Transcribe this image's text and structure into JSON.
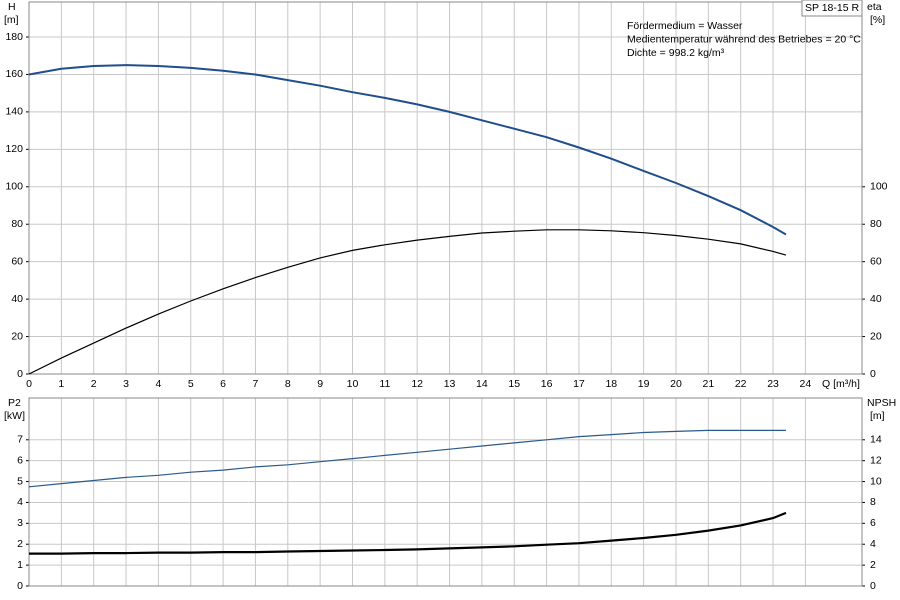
{
  "chart_data": [
    {
      "type": "line",
      "model": "SP 18-15 R",
      "annotations": [
        "Fördermedium = Wasser",
        "Medientemperatur während des Betriebes = 20 °C",
        "Dichte = 998.2 kg/m³"
      ],
      "ylabel": "H",
      "yunit": "[m]",
      "y2label": "eta",
      "y2unit": "[%]",
      "xlabel": "Q [m³/h]",
      "x": [
        0,
        1,
        2,
        3,
        4,
        5,
        6,
        7,
        8,
        9,
        10,
        11,
        12,
        13,
        14,
        15,
        16,
        17,
        18,
        19,
        20,
        21,
        22,
        23,
        23.4
      ],
      "xlim": [
        0,
        25.75
      ],
      "xticks": [
        0,
        1,
        2,
        3,
        4,
        5,
        6,
        7,
        8,
        9,
        10,
        11,
        12,
        13,
        14,
        15,
        16,
        17,
        18,
        19,
        20,
        21,
        22,
        23,
        24
      ],
      "ylim": [
        0,
        198.7
      ],
      "yticks": [
        0,
        20,
        40,
        60,
        80,
        100,
        120,
        140,
        160,
        180
      ],
      "y2lim": [
        0,
        198.7
      ],
      "y2ticks": [
        0,
        20,
        40,
        60,
        80,
        100
      ],
      "grid": true,
      "series": [
        {
          "name": "H",
          "color": "#1f4e8c",
          "values": [
            160,
            163,
            164.5,
            165,
            164.5,
            163.5,
            162,
            160,
            157,
            154,
            150.5,
            147.5,
            144,
            140,
            135.5,
            131,
            126.5,
            121,
            115,
            108.5,
            102,
            95,
            87.5,
            78.5,
            74.5
          ]
        },
        {
          "name": "eta",
          "color": "#000000",
          "axis": "y2",
          "values": [
            0,
            8.5,
            16.5,
            24.5,
            32,
            39,
            45.5,
            51.5,
            57,
            62,
            66,
            69,
            71.5,
            73.5,
            75.3,
            76.3,
            77,
            77,
            76.5,
            75.5,
            74,
            72,
            69.5,
            65.5,
            63.5
          ]
        }
      ]
    },
    {
      "type": "line",
      "ylabel": "P2",
      "yunit": "[kW]",
      "y2label": "NPSH",
      "y2unit": "[m]",
      "x": [
        0,
        1,
        2,
        3,
        4,
        5,
        6,
        7,
        8,
        9,
        10,
        11,
        12,
        13,
        14,
        15,
        16,
        17,
        18,
        19,
        20,
        21,
        22,
        23,
        23.4
      ],
      "xlim": [
        0,
        25.75
      ],
      "xticks": [
        0,
        1,
        2,
        3,
        4,
        5,
        6,
        7,
        8,
        9,
        10,
        11,
        12,
        13,
        14,
        15,
        16,
        17,
        18,
        19,
        20,
        21,
        22,
        23,
        24
      ],
      "ylim": [
        0,
        9
      ],
      "yticks": [
        0,
        1,
        2,
        3,
        4,
        5,
        6,
        7
      ],
      "y2lim": [
        0,
        18
      ],
      "y2ticks": [
        0,
        2,
        4,
        6,
        8,
        10,
        12,
        14
      ],
      "grid": true,
      "series": [
        {
          "name": "P2",
          "color": "#2a5a8a",
          "values": [
            4.75,
            4.9,
            5.05,
            5.2,
            5.3,
            5.45,
            5.55,
            5.7,
            5.8,
            5.95,
            6.1,
            6.25,
            6.4,
            6.55,
            6.7,
            6.85,
            7.0,
            7.15,
            7.25,
            7.35,
            7.4,
            7.45,
            7.45,
            7.45,
            7.45
          ]
        },
        {
          "name": "NPSH",
          "color": "#000000",
          "axis": "y2",
          "values": [
            3.1,
            3.1,
            3.15,
            3.15,
            3.2,
            3.2,
            3.25,
            3.25,
            3.3,
            3.35,
            3.4,
            3.45,
            3.5,
            3.6,
            3.7,
            3.8,
            3.95,
            4.1,
            4.35,
            4.6,
            4.9,
            5.3,
            5.8,
            6.5,
            7.0
          ]
        }
      ]
    }
  ]
}
